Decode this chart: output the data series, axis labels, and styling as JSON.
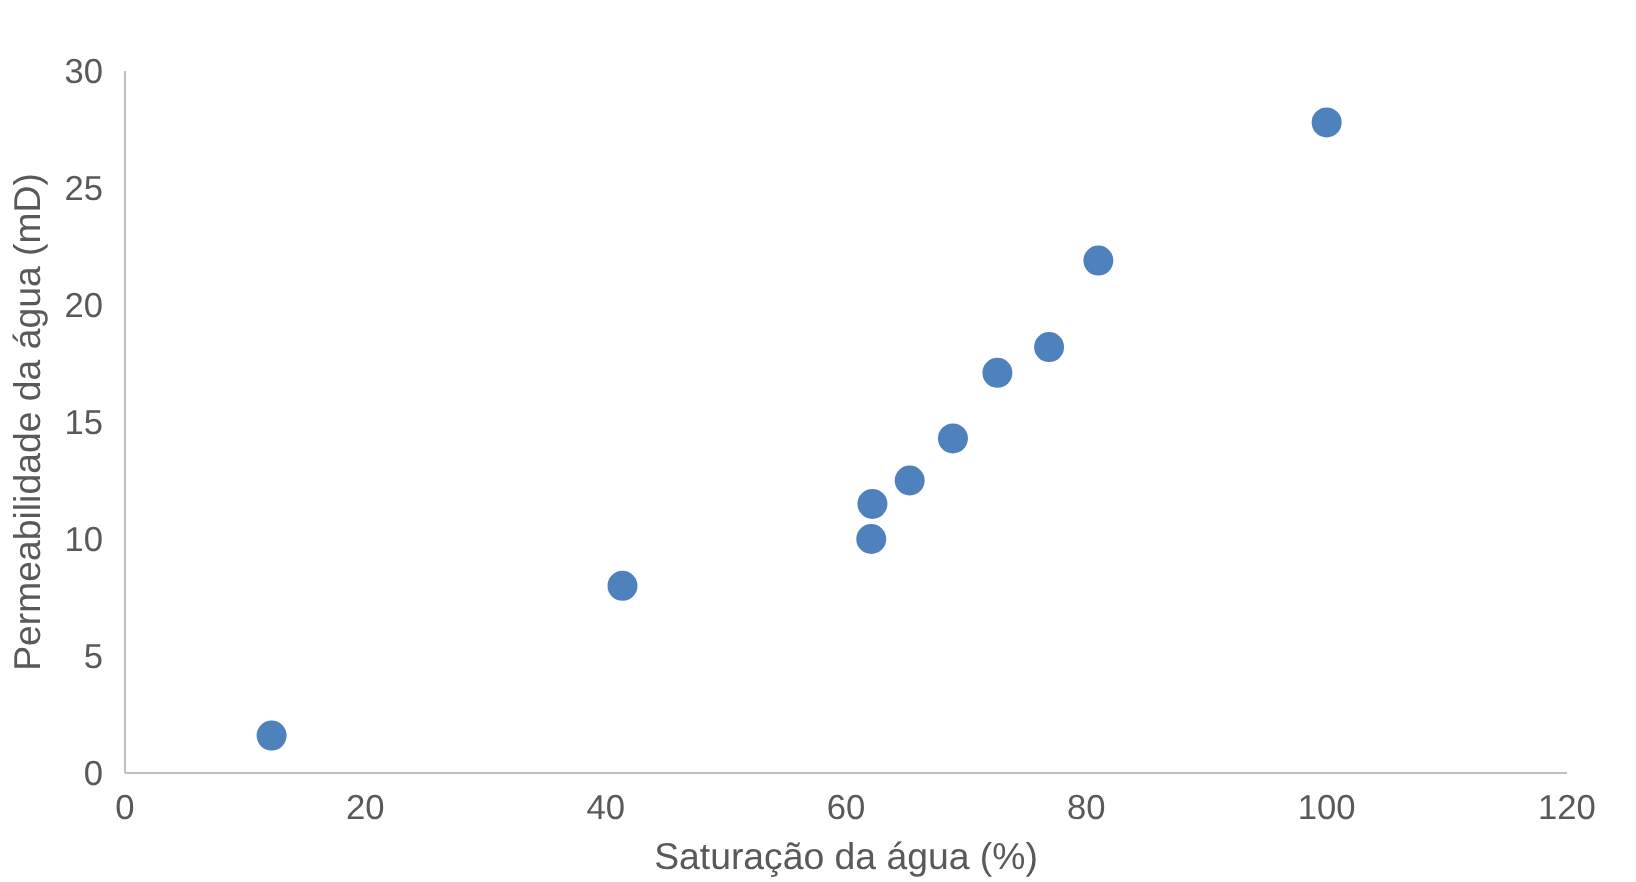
{
  "chart_data": {
    "type": "scatter",
    "xlabel": "Saturação da água (%)",
    "ylabel": "Permeabilidade da água (mD)",
    "x": [
      12.2,
      41.4,
      62.1,
      62.2,
      65.3,
      68.9,
      72.6,
      76.9,
      81.0,
      100.0
    ],
    "series": [
      {
        "color": "#4f81bd",
        "values": [
          1.6,
          8.0,
          10.0,
          11.5,
          12.5,
          14.3,
          17.1,
          18.2,
          21.9,
          27.8
        ]
      }
    ],
    "xlim": [
      0,
      120
    ],
    "xticks": [
      0,
      20,
      40,
      60,
      80,
      100,
      120
    ],
    "ylim": [
      0,
      30
    ],
    "yticks": [
      0,
      5,
      10,
      15,
      20,
      25,
      30
    ],
    "grid": false,
    "marker": "circle"
  }
}
